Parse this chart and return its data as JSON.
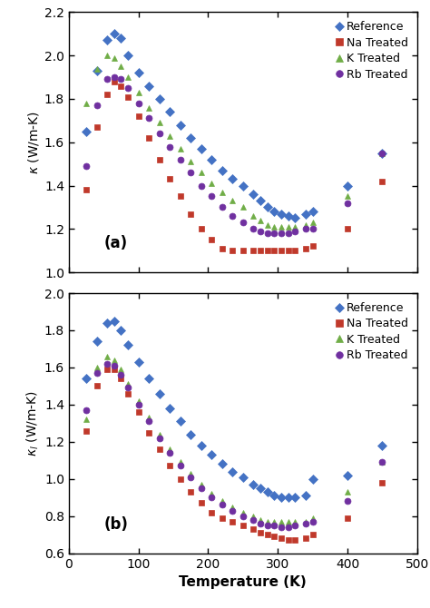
{
  "panel_a": {
    "title": "(a)",
    "ylim": [
      1.0,
      2.2
    ],
    "yticks": [
      1.0,
      1.2,
      1.4,
      1.6,
      1.8,
      2.0,
      2.2
    ],
    "ylabel": "$\\kappa$ (W/m-K)",
    "series": {
      "Reference": {
        "color": "#4472C4",
        "marker": "D",
        "x": [
          25,
          40,
          55,
          65,
          75,
          85,
          100,
          115,
          130,
          145,
          160,
          175,
          190,
          205,
          220,
          235,
          250,
          265,
          275,
          285,
          295,
          305,
          315,
          325,
          340,
          350,
          400,
          450
        ],
        "y": [
          1.65,
          1.93,
          2.07,
          2.1,
          2.08,
          2.0,
          1.92,
          1.86,
          1.8,
          1.74,
          1.68,
          1.62,
          1.57,
          1.52,
          1.47,
          1.43,
          1.4,
          1.36,
          1.33,
          1.3,
          1.28,
          1.27,
          1.26,
          1.25,
          1.27,
          1.28,
          1.4,
          1.55
        ]
      },
      "Na Treated": {
        "color": "#C0392B",
        "marker": "s",
        "x": [
          25,
          40,
          55,
          65,
          75,
          85,
          100,
          115,
          130,
          145,
          160,
          175,
          190,
          205,
          220,
          235,
          250,
          265,
          275,
          285,
          295,
          305,
          315,
          325,
          340,
          350,
          400,
          450
        ],
        "y": [
          1.38,
          1.67,
          1.82,
          1.88,
          1.86,
          1.81,
          1.72,
          1.62,
          1.52,
          1.43,
          1.35,
          1.27,
          1.2,
          1.15,
          1.11,
          1.1,
          1.1,
          1.1,
          1.1,
          1.1,
          1.1,
          1.1,
          1.1,
          1.1,
          1.11,
          1.12,
          1.2,
          1.42
        ]
      },
      "K Treated": {
        "color": "#70AD47",
        "marker": "^",
        "x": [
          25,
          40,
          55,
          65,
          75,
          85,
          100,
          115,
          130,
          145,
          160,
          175,
          190,
          205,
          220,
          235,
          250,
          265,
          275,
          285,
          295,
          305,
          315,
          325,
          340,
          350,
          400,
          450
        ],
        "y": [
          1.78,
          1.94,
          2.0,
          1.99,
          1.95,
          1.9,
          1.83,
          1.76,
          1.69,
          1.63,
          1.57,
          1.51,
          1.46,
          1.41,
          1.37,
          1.33,
          1.3,
          1.26,
          1.24,
          1.22,
          1.21,
          1.21,
          1.21,
          1.21,
          1.22,
          1.23,
          1.35,
          1.55
        ]
      },
      "Rb Treated": {
        "color": "#7030A0",
        "marker": "o",
        "x": [
          25,
          40,
          55,
          65,
          75,
          85,
          100,
          115,
          130,
          145,
          160,
          175,
          190,
          205,
          220,
          235,
          250,
          265,
          275,
          285,
          295,
          305,
          315,
          325,
          340,
          350,
          400,
          450
        ],
        "y": [
          1.49,
          1.77,
          1.89,
          1.9,
          1.89,
          1.85,
          1.78,
          1.71,
          1.64,
          1.58,
          1.52,
          1.46,
          1.4,
          1.35,
          1.3,
          1.26,
          1.23,
          1.2,
          1.19,
          1.18,
          1.18,
          1.18,
          1.18,
          1.19,
          1.2,
          1.2,
          1.32,
          1.55
        ]
      }
    }
  },
  "panel_b": {
    "title": "(b)",
    "ylim": [
      0.6,
      2.0
    ],
    "yticks": [
      0.6,
      0.8,
      1.0,
      1.2,
      1.4,
      1.6,
      1.8,
      2.0
    ],
    "ylabel": "$\\kappa_l$ (W/m-K)",
    "series": {
      "Reference": {
        "color": "#4472C4",
        "marker": "D",
        "x": [
          25,
          40,
          55,
          65,
          75,
          85,
          100,
          115,
          130,
          145,
          160,
          175,
          190,
          205,
          220,
          235,
          250,
          265,
          275,
          285,
          295,
          305,
          315,
          325,
          340,
          350,
          400,
          450
        ],
        "y": [
          1.54,
          1.74,
          1.84,
          1.85,
          1.8,
          1.72,
          1.63,
          1.54,
          1.46,
          1.38,
          1.31,
          1.24,
          1.18,
          1.13,
          1.08,
          1.04,
          1.01,
          0.97,
          0.95,
          0.93,
          0.91,
          0.9,
          0.9,
          0.9,
          0.91,
          1.0,
          1.02,
          1.18
        ]
      },
      "Na Treated": {
        "color": "#C0392B",
        "marker": "s",
        "x": [
          25,
          40,
          55,
          65,
          75,
          85,
          100,
          115,
          130,
          145,
          160,
          175,
          190,
          205,
          220,
          235,
          250,
          265,
          275,
          285,
          295,
          305,
          315,
          325,
          340,
          350,
          400,
          450
        ],
        "y": [
          1.26,
          1.5,
          1.59,
          1.59,
          1.54,
          1.46,
          1.36,
          1.25,
          1.16,
          1.07,
          1.0,
          0.93,
          0.87,
          0.82,
          0.79,
          0.77,
          0.75,
          0.73,
          0.71,
          0.7,
          0.69,
          0.68,
          0.67,
          0.67,
          0.68,
          0.7,
          0.79,
          0.98
        ]
      },
      "K Treated": {
        "color": "#70AD47",
        "marker": "^",
        "x": [
          25,
          40,
          55,
          65,
          75,
          85,
          100,
          115,
          130,
          145,
          160,
          175,
          190,
          205,
          220,
          235,
          250,
          265,
          275,
          285,
          295,
          305,
          315,
          325,
          340,
          350,
          400,
          450
        ],
        "y": [
          1.32,
          1.6,
          1.66,
          1.64,
          1.59,
          1.51,
          1.42,
          1.33,
          1.24,
          1.16,
          1.09,
          1.03,
          0.97,
          0.92,
          0.88,
          0.85,
          0.82,
          0.8,
          0.78,
          0.77,
          0.77,
          0.77,
          0.77,
          0.77,
          0.77,
          0.79,
          0.93,
          1.09
        ]
      },
      "Rb Treated": {
        "color": "#7030A0",
        "marker": "o",
        "x": [
          25,
          40,
          55,
          65,
          75,
          85,
          100,
          115,
          130,
          145,
          160,
          175,
          190,
          205,
          220,
          235,
          250,
          265,
          275,
          285,
          295,
          305,
          315,
          325,
          340,
          350,
          400,
          450
        ],
        "y": [
          1.37,
          1.57,
          1.62,
          1.61,
          1.56,
          1.49,
          1.4,
          1.31,
          1.22,
          1.14,
          1.07,
          1.01,
          0.95,
          0.9,
          0.86,
          0.83,
          0.8,
          0.78,
          0.76,
          0.75,
          0.75,
          0.74,
          0.74,
          0.75,
          0.76,
          0.77,
          0.88,
          1.09
        ]
      }
    }
  },
  "xlim": [
    0,
    500
  ],
  "xticks": [
    0,
    100,
    200,
    300,
    400,
    500
  ],
  "xlabel": "Temperature (K)",
  "marker_size": 5,
  "legend_order": [
    "Reference",
    "Na Treated",
    "K Treated",
    "Rb Treated"
  ]
}
